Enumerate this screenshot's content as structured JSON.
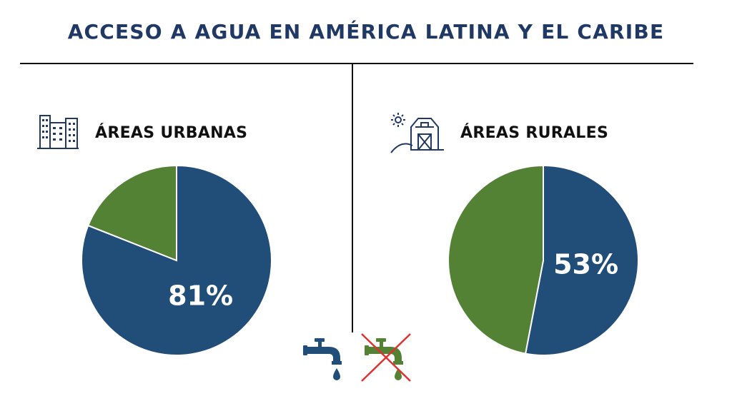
{
  "title": "ACCESO A AGUA EN AMÉRICA LATINA Y EL CARIBE",
  "colors": {
    "title": "#1f3864",
    "access": "#214e78",
    "no_access": "#548235",
    "cross": "#e03131"
  },
  "icons": {
    "urban": "city-buildings-icon",
    "rural": "farm-barn-icon",
    "access": "water-faucet-icon",
    "no_access": "water-faucet-crossed-icon"
  },
  "chart_data": [
    {
      "type": "pie",
      "title": "ÁREAS URBANAS",
      "slices": [
        {
          "value": 81,
          "label": "81%",
          "color": "#214e78"
        },
        {
          "value": 19,
          "label": "",
          "color": "#548235"
        }
      ]
    },
    {
      "type": "pie",
      "title": "ÁREAS RURALES",
      "slices": [
        {
          "value": 53,
          "label": "53%",
          "color": "#214e78"
        },
        {
          "value": 47,
          "label": "",
          "color": "#548235"
        }
      ]
    }
  ]
}
